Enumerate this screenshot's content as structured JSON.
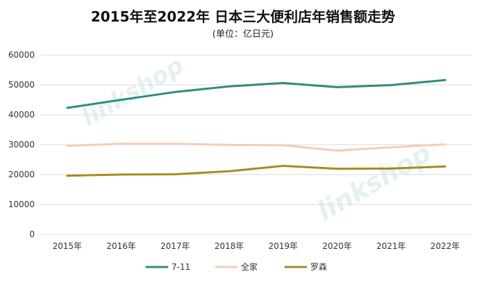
{
  "watermark": {
    "text": "linkshop"
  },
  "chart_data": {
    "type": "line",
    "title": "2015年至2022年 日本三大便利店年销售额走势",
    "subtitle": "(单位：亿日元)",
    "xlabel": "",
    "ylabel": "",
    "categories": [
      "2015年",
      "2016年",
      "2017年",
      "2018年",
      "2019年",
      "2020年",
      "2021年",
      "2022年"
    ],
    "ylim": [
      0,
      60000
    ],
    "yticks": [
      0,
      10000,
      20000,
      30000,
      40000,
      50000,
      60000
    ],
    "yticks_labels": [
      "0",
      "10000",
      "20000",
      "30000",
      "40000",
      "50000",
      "60000"
    ],
    "grid": true,
    "legend_position": "bottom",
    "series": [
      {
        "name": "7-11",
        "color": "#2e8b7f",
        "values": [
          42300,
          45000,
          47600,
          49500,
          50600,
          49200,
          49900,
          51600
        ]
      },
      {
        "name": "全家",
        "color": "#f3cdb3",
        "values": [
          29600,
          30300,
          30300,
          29900,
          29800,
          28000,
          29100,
          30100
        ]
      },
      {
        "name": "罗森",
        "color": "#a98a17",
        "values": [
          19600,
          20000,
          20100,
          21100,
          22900,
          21900,
          22000,
          22700
        ]
      }
    ]
  }
}
